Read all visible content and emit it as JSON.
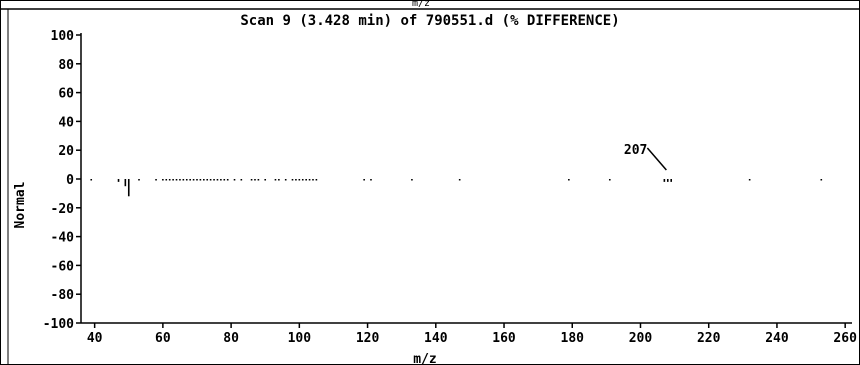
{
  "chart_data": {
    "type": "bar",
    "title": "Scan 9 (3.428 min) of 790551.d (% DIFFERENCE)",
    "top_fragment": "m/z",
    "xlabel": "m/z",
    "ylabel": "Normal",
    "xlim": [
      36,
      262
    ],
    "ylim": [
      -100,
      100
    ],
    "x_ticks": [
      40,
      60,
      80,
      100,
      120,
      140,
      160,
      180,
      200,
      220,
      240,
      260
    ],
    "y_ticks": [
      100,
      80,
      60,
      40,
      20,
      0,
      -20,
      -40,
      -60,
      -80,
      -100
    ],
    "grid": false,
    "series": [
      {
        "x": [
          39,
          47,
          49,
          50,
          53,
          58,
          60,
          61,
          62,
          63,
          64,
          65,
          66,
          67,
          68,
          69,
          70,
          71,
          72,
          73,
          74,
          75,
          76,
          77,
          78,
          79,
          81,
          83,
          86,
          87,
          88,
          90,
          93,
          94,
          96,
          98,
          99,
          100,
          101,
          102,
          103,
          104,
          105,
          119,
          121,
          133,
          147,
          179,
          191,
          207,
          208,
          209,
          232,
          253
        ],
        "values": [
          -1,
          -2,
          -5,
          -12,
          -1,
          -1,
          -1,
          -1,
          -1,
          -1,
          -1,
          -1,
          -1,
          -1,
          -1,
          -1,
          -1,
          -1,
          -1,
          -1,
          -1,
          -1,
          -1,
          -1,
          -1,
          -1,
          -1,
          -1,
          -1,
          -1,
          -1,
          -1,
          -1,
          -1,
          -1,
          -1,
          -1,
          -1,
          -1,
          -1,
          -1,
          -1,
          -1,
          -1,
          -1,
          -1,
          -1,
          -1,
          -1,
          -2,
          -2,
          -2,
          -1,
          -1
        ]
      }
    ],
    "annotations": [
      {
        "x": 207,
        "text": "207"
      }
    ]
  }
}
